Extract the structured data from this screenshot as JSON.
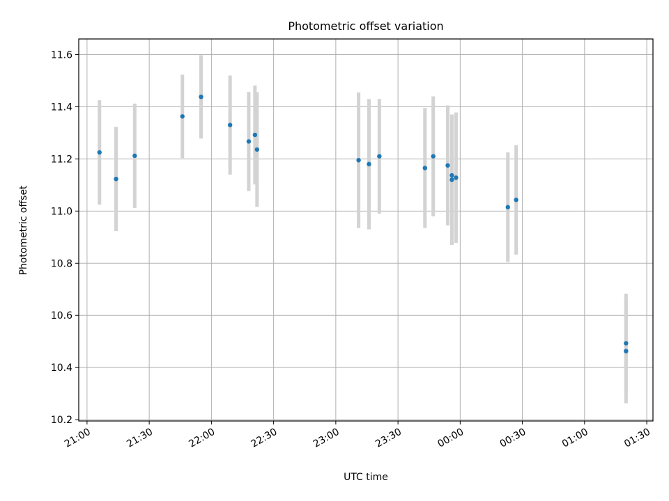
{
  "chart_data": {
    "type": "scatter",
    "title": "Photometric offset variation",
    "xlabel": "UTC time",
    "ylabel": "Photometric offset",
    "x_ticks": [
      "21:00",
      "21:30",
      "22:00",
      "22:30",
      "23:00",
      "23:30",
      "00:00",
      "00:30",
      "01:00",
      "01:30"
    ],
    "y_ticks": [
      "10.2",
      "10.4",
      "10.6",
      "10.8",
      "11.0",
      "11.2",
      "11.4",
      "11.6"
    ],
    "xlim": [
      "20:56",
      "01:33"
    ],
    "ylim": [
      10.195,
      11.66
    ],
    "grid": true,
    "point_color": "#1f77b4",
    "errorbar_color": "#d3d3d3",
    "points": [
      {
        "time": "21:06",
        "y": 11.225,
        "err": 0.2
      },
      {
        "time": "21:14",
        "y": 11.123,
        "err": 0.2
      },
      {
        "time": "21:23",
        "y": 11.212,
        "err": 0.2
      },
      {
        "time": "21:46",
        "y": 11.363,
        "err": 0.16
      },
      {
        "time": "21:55",
        "y": 11.438,
        "err": 0.16
      },
      {
        "time": "22:09",
        "y": 11.33,
        "err": 0.19
      },
      {
        "time": "22:18",
        "y": 11.267,
        "err": 0.19
      },
      {
        "time": "22:21",
        "y": 11.292,
        "err": 0.19
      },
      {
        "time": "22:22",
        "y": 11.236,
        "err": 0.22
      },
      {
        "time": "23:11",
        "y": 11.195,
        "err": 0.26
      },
      {
        "time": "23:16",
        "y": 11.18,
        "err": 0.25
      },
      {
        "time": "23:21",
        "y": 11.21,
        "err": 0.22
      },
      {
        "time": "23:43",
        "y": 11.165,
        "err": 0.23
      },
      {
        "time": "23:47",
        "y": 11.21,
        "err": 0.23
      },
      {
        "time": "23:54",
        "y": 11.175,
        "err": 0.23
      },
      {
        "time": "23:56",
        "y": 11.137,
        "err": 0.23
      },
      {
        "time": "23:56",
        "y": 11.12,
        "err": 0.25
      },
      {
        "time": "23:58",
        "y": 11.128,
        "err": 0.25
      },
      {
        "time": "00:23",
        "y": 11.015,
        "err": 0.21
      },
      {
        "time": "00:27",
        "y": 11.043,
        "err": 0.21
      },
      {
        "time": "01:20",
        "y": 10.493,
        "err": 0.19
      },
      {
        "time": "01:20",
        "y": 10.463,
        "err": 0.2
      }
    ]
  }
}
